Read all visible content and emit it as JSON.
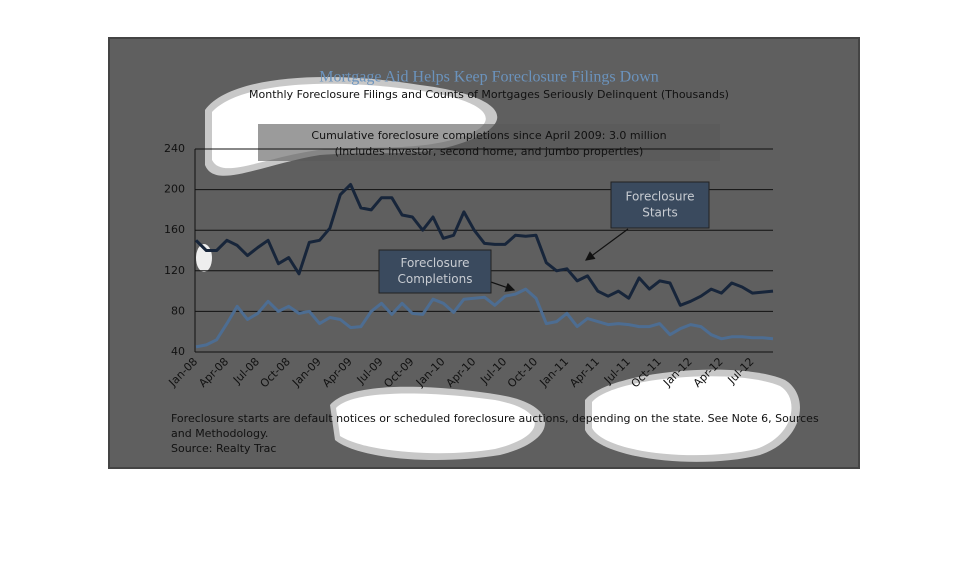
{
  "chart_data": {
    "type": "line",
    "title": "Mortgage Aid Helps Keep Foreclosure Filings Down",
    "subtitle": "Monthly Foreclosure Filings and Counts of Mortgages Seriously Delinquent (Thousands)",
    "note": [
      "Cumulative foreclosure completions since April 2009: 3.0 million",
      "(Includes investor, second home, and jumbo properties)"
    ],
    "callouts": [
      [
        "Foreclosure",
        "Starts"
      ],
      [
        "Foreclosure",
        "Completions"
      ]
    ],
    "footnote": [
      "Foreclosure starts are default notices or scheduled foreclosure auctions, depending on the state. See Note 6, Sources",
      "and Methodology."
    ],
    "source": "Source: Realty Trac",
    "categories": [
      "Jan-08",
      null,
      null,
      "Apr-08",
      null,
      null,
      "Jul-08",
      null,
      null,
      "Oct-08",
      null,
      null,
      "Jan-09",
      null,
      null,
      "Apr-09",
      null,
      null,
      "Jul-09",
      null,
      null,
      "Oct-09",
      null,
      null,
      "Jan-10",
      null,
      null,
      "Apr-10",
      null,
      null,
      "Jul-10",
      null,
      null,
      "Oct-10",
      null,
      null,
      "Jan-11",
      null,
      null,
      "Apr-11",
      null,
      null,
      "Jul-11",
      null,
      null,
      "Oct-11",
      null,
      null,
      "Jan-12",
      null,
      null,
      "Apr-12",
      null,
      null,
      "Jul-12",
      null,
      null
    ],
    "series": [
      {
        "color": "#17253a",
        "values": [
          150,
          140,
          140,
          150,
          145,
          135,
          143,
          150,
          127,
          133,
          117,
          148,
          150,
          162,
          195,
          205,
          182,
          180,
          192,
          192,
          175,
          173,
          160,
          173,
          152,
          155,
          178,
          160,
          147,
          146,
          146,
          155,
          154,
          155,
          128,
          120,
          122,
          110,
          115,
          100,
          95,
          100,
          93,
          113,
          102,
          110,
          108,
          86,
          90,
          95,
          102,
          98,
          108,
          104,
          98,
          99,
          100
        ]
      },
      {
        "color": "#4d6d92",
        "values": [
          45,
          47,
          52,
          68,
          85,
          72,
          78,
          90,
          80,
          85,
          78,
          80,
          68,
          74,
          72,
          64,
          65,
          80,
          88,
          77,
          88,
          78,
          77,
          92,
          88,
          79,
          92,
          93,
          94,
          86,
          95,
          97,
          102,
          93,
          68,
          70,
          78,
          65,
          73,
          70,
          67,
          68,
          67,
          65,
          65,
          68,
          57,
          63,
          67,
          65,
          57,
          53,
          55,
          55,
          54,
          54,
          53
        ]
      }
    ],
    "ylim": [
      40,
      240
    ],
    "yticks": [
      40,
      80,
      120,
      160,
      200,
      240
    ],
    "grid": true
  }
}
